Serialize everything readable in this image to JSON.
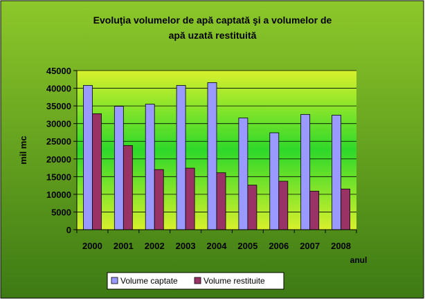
{
  "chart_data": {
    "type": "bar",
    "title_line1": "Evoluţia volumelor de apă captată şi a volumelor de",
    "title_line2": "apă uzată restituită",
    "xlabel": "anul",
    "ylabel": "mil mc",
    "categories": [
      "2000",
      "2001",
      "2002",
      "2003",
      "2004",
      "2005",
      "2006",
      "2007",
      "2008"
    ],
    "yticks": [
      "0",
      "5000",
      "10000",
      "15000",
      "20000",
      "25000",
      "30000",
      "35000",
      "40000",
      "45000"
    ],
    "ylim": [
      0,
      45000
    ],
    "grid": true,
    "legend_position": "bottom",
    "series": [
      {
        "name": "Volume captate",
        "color": "#9999ff",
        "values": [
          40800,
          34900,
          35500,
          40800,
          41600,
          31600,
          27400,
          32600,
          32400
        ]
      },
      {
        "name": "Volume restituite",
        "color": "#993366",
        "values": [
          32800,
          23800,
          17000,
          17400,
          16100,
          12600,
          13700,
          10900,
          11500
        ]
      }
    ]
  },
  "colors": {
    "outer_top": "#8cc82a",
    "outer_bottom": "#3d7a14",
    "plot_edge": "#d8f02c",
    "plot_center": "#2ed82a",
    "gridline": "#000000"
  }
}
